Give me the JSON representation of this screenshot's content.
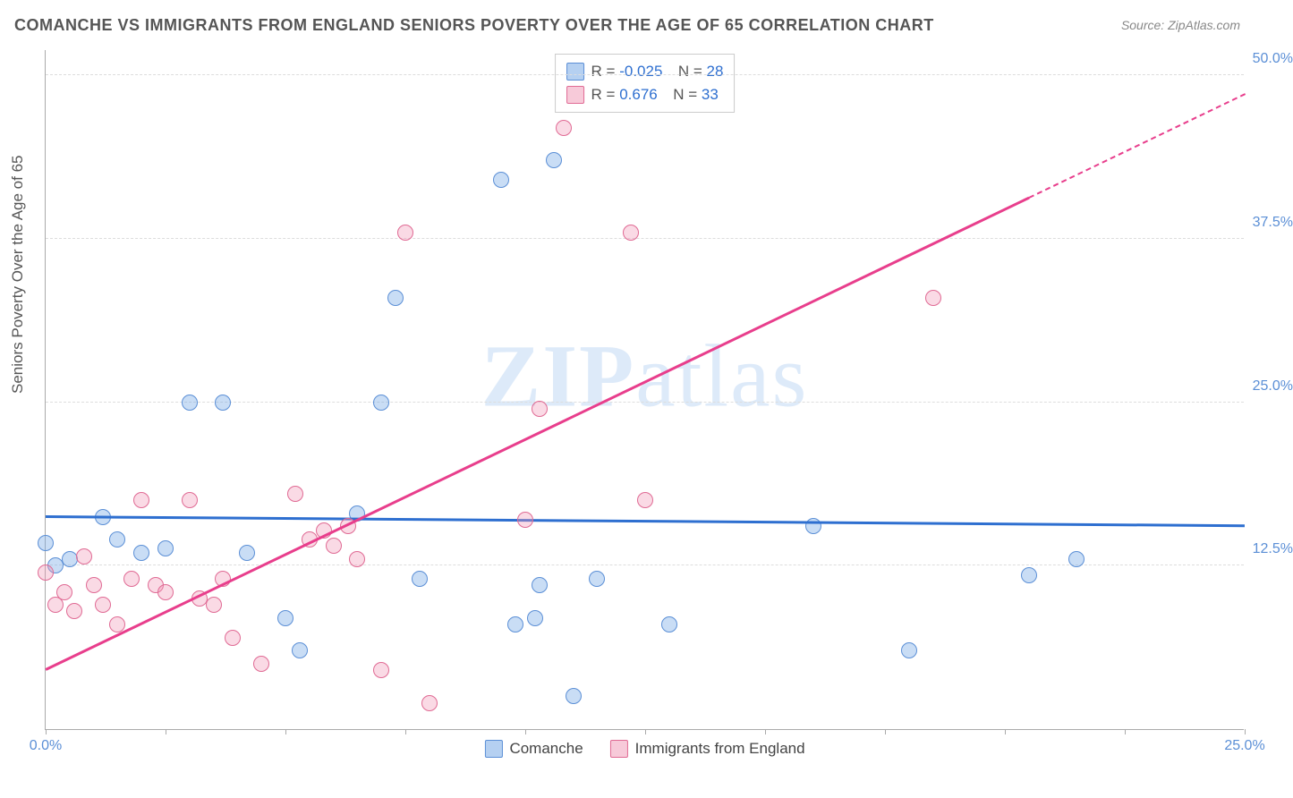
{
  "title": "COMANCHE VS IMMIGRANTS FROM ENGLAND SENIORS POVERTY OVER THE AGE OF 65 CORRELATION CHART",
  "source": "Source: ZipAtlas.com",
  "y_axis_label": "Seniors Poverty Over the Age of 65",
  "watermark": {
    "bold": "ZIP",
    "rest": "atlas"
  },
  "chart": {
    "type": "scatter",
    "background_color": "#ffffff",
    "grid_color": "#dddddd",
    "axis_color": "#aaaaaa",
    "label_color": "#5b8fd6",
    "title_fontsize": 18,
    "label_fontsize": 17,
    "tick_fontsize": 16,
    "marker_size": 18,
    "line_width": 2.5,
    "xlim": [
      0,
      25
    ],
    "ylim": [
      0,
      52
    ],
    "x_ticks": [
      0,
      2.5,
      5,
      7.5,
      10,
      12.5,
      15,
      17.5,
      20,
      22.5,
      25
    ],
    "x_tick_labels": {
      "0": "0.0%",
      "25": "25.0%"
    },
    "y_gridlines": [
      12.5,
      25.0,
      37.5,
      50.0
    ],
    "y_tick_labels": [
      "12.5%",
      "25.0%",
      "37.5%",
      "50.0%"
    ],
    "series": [
      {
        "name": "Comanche",
        "color_fill": "rgba(120,170,230,0.4)",
        "color_stroke": "#5b8fd6",
        "trend_color": "#2e6fd0",
        "R": "-0.025",
        "N": "28",
        "trend": {
          "x1": 0,
          "y1": 16.2,
          "x2": 25,
          "y2": 15.5,
          "dashed_from_x": null
        },
        "points": [
          [
            0.0,
            14.2
          ],
          [
            0.2,
            12.5
          ],
          [
            0.5,
            13.0
          ],
          [
            1.2,
            16.2
          ],
          [
            1.5,
            14.5
          ],
          [
            2.0,
            13.5
          ],
          [
            2.5,
            13.8
          ],
          [
            3.0,
            25.0
          ],
          [
            3.7,
            25.0
          ],
          [
            4.2,
            13.5
          ],
          [
            5.0,
            8.5
          ],
          [
            5.3,
            6.0
          ],
          [
            6.5,
            16.5
          ],
          [
            7.0,
            25.0
          ],
          [
            7.3,
            33.0
          ],
          [
            7.8,
            11.5
          ],
          [
            9.5,
            42.0
          ],
          [
            9.8,
            8.0
          ],
          [
            10.2,
            8.5
          ],
          [
            10.3,
            11.0
          ],
          [
            10.6,
            43.5
          ],
          [
            11.0,
            2.5
          ],
          [
            11.5,
            11.5
          ],
          [
            13.0,
            8.0
          ],
          [
            16.0,
            15.5
          ],
          [
            18.0,
            6.0
          ],
          [
            20.5,
            11.8
          ],
          [
            21.5,
            13.0
          ]
        ]
      },
      {
        "name": "Immigrants from England",
        "color_fill": "rgba(240,150,180,0.35)",
        "color_stroke": "#e06a94",
        "trend_color": "#e83e8c",
        "R": "0.676",
        "N": "33",
        "trend": {
          "x1": 0,
          "y1": 4.5,
          "x2": 25,
          "y2": 48.5,
          "dashed_from_x": 20.5
        },
        "points": [
          [
            0.0,
            12.0
          ],
          [
            0.2,
            9.5
          ],
          [
            0.4,
            10.5
          ],
          [
            0.6,
            9.0
          ],
          [
            0.8,
            13.2
          ],
          [
            1.0,
            11.0
          ],
          [
            1.2,
            9.5
          ],
          [
            1.5,
            8.0
          ],
          [
            1.8,
            11.5
          ],
          [
            2.0,
            17.5
          ],
          [
            2.3,
            11.0
          ],
          [
            2.5,
            10.5
          ],
          [
            3.0,
            17.5
          ],
          [
            3.2,
            10.0
          ],
          [
            3.5,
            9.5
          ],
          [
            3.7,
            11.5
          ],
          [
            3.9,
            7.0
          ],
          [
            4.5,
            5.0
          ],
          [
            5.2,
            18.0
          ],
          [
            5.5,
            14.5
          ],
          [
            5.8,
            15.2
          ],
          [
            6.0,
            14.0
          ],
          [
            6.3,
            15.5
          ],
          [
            6.5,
            13.0
          ],
          [
            7.0,
            4.5
          ],
          [
            7.5,
            38.0
          ],
          [
            8.0,
            2.0
          ],
          [
            10.0,
            16.0
          ],
          [
            10.3,
            24.5
          ],
          [
            10.8,
            46.0
          ],
          [
            12.2,
            38.0
          ],
          [
            12.5,
            17.5
          ],
          [
            18.5,
            33.0
          ]
        ]
      }
    ],
    "legend_bottom": [
      {
        "swatch": "blue",
        "label": "Comanche"
      },
      {
        "swatch": "pink",
        "label": "Immigrants from England"
      }
    ],
    "legend_top_rows": [
      {
        "swatch": "blue",
        "R": "-0.025",
        "N": "28"
      },
      {
        "swatch": "pink",
        "R": "0.676",
        "N": "33"
      }
    ]
  }
}
